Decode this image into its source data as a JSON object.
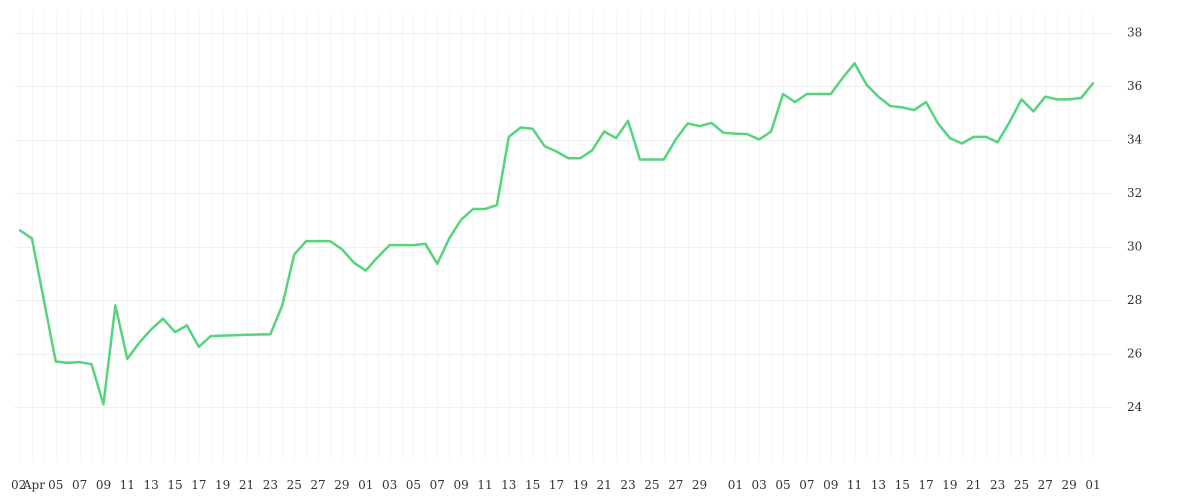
{
  "chart_data": {
    "type": "line",
    "title": "",
    "xlabel": "",
    "ylabel": "",
    "ylim": [
      22,
      39
    ],
    "grid": true,
    "y_axis_side": "right",
    "y_ticks": [
      24,
      26,
      28,
      30,
      32,
      34,
      36,
      38
    ],
    "x_tick_labels": [
      {
        "i": 0,
        "label": "02"
      },
      {
        "i": 1,
        "label": "Apr"
      },
      {
        "i": 3,
        "label": "05"
      },
      {
        "i": 5,
        "label": "07"
      },
      {
        "i": 7,
        "label": "09"
      },
      {
        "i": 9,
        "label": "11"
      },
      {
        "i": 11,
        "label": "13"
      },
      {
        "i": 13,
        "label": "15"
      },
      {
        "i": 15,
        "label": "17"
      },
      {
        "i": 17,
        "label": "19"
      },
      {
        "i": 19,
        "label": "21"
      },
      {
        "i": 21,
        "label": "23"
      },
      {
        "i": 23,
        "label": "25"
      },
      {
        "i": 25,
        "label": "27"
      },
      {
        "i": 27,
        "label": "29"
      },
      {
        "i": 29,
        "label": "01"
      },
      {
        "i": 31,
        "label": "03"
      },
      {
        "i": 33,
        "label": "05"
      },
      {
        "i": 35,
        "label": "07"
      },
      {
        "i": 37,
        "label": "09"
      },
      {
        "i": 39,
        "label": "11"
      },
      {
        "i": 41,
        "label": "13"
      },
      {
        "i": 43,
        "label": "15"
      },
      {
        "i": 45,
        "label": "17"
      },
      {
        "i": 47,
        "label": "19"
      },
      {
        "i": 49,
        "label": "21"
      },
      {
        "i": 51,
        "label": "23"
      },
      {
        "i": 53,
        "label": "25"
      },
      {
        "i": 55,
        "label": "27"
      },
      {
        "i": 57,
        "label": "29"
      },
      {
        "i": 60,
        "label": "01"
      },
      {
        "i": 62,
        "label": "03"
      },
      {
        "i": 64,
        "label": "05"
      },
      {
        "i": 66,
        "label": "07"
      },
      {
        "i": 68,
        "label": "09"
      },
      {
        "i": 70,
        "label": "11"
      },
      {
        "i": 72,
        "label": "13"
      },
      {
        "i": 74,
        "label": "15"
      },
      {
        "i": 76,
        "label": "17"
      },
      {
        "i": 78,
        "label": "19"
      },
      {
        "i": 80,
        "label": "21"
      },
      {
        "i": 82,
        "label": "23"
      },
      {
        "i": 84,
        "label": "25"
      },
      {
        "i": 86,
        "label": "27"
      },
      {
        "i": 88,
        "label": "29"
      },
      {
        "i": 90,
        "label": "01"
      }
    ],
    "series": [
      {
        "color": "#55d47d",
        "values": [
          30.6,
          30.3,
          28.0,
          25.7,
          25.65,
          25.68,
          25.6,
          24.1,
          27.8,
          25.8,
          26.4,
          26.9,
          27.3,
          26.8,
          27.05,
          26.25,
          26.65,
          26.67,
          26.68,
          26.7,
          26.71,
          26.72,
          27.8,
          29.7,
          30.2,
          30.2,
          30.2,
          29.9,
          29.4,
          29.1,
          29.6,
          30.05,
          30.05,
          30.05,
          30.1,
          29.35,
          30.3,
          31.0,
          31.4,
          31.4,
          31.55,
          34.1,
          34.45,
          34.4,
          33.75,
          33.55,
          33.3,
          33.3,
          33.6,
          34.3,
          34.05,
          34.7,
          33.25,
          33.25,
          33.25,
          34.0,
          34.6,
          34.5,
          34.62,
          34.25,
          34.22,
          34.2,
          34.0,
          34.3,
          35.7,
          35.4,
          35.7,
          35.7,
          35.7,
          36.3,
          36.85,
          36.05,
          35.6,
          35.25,
          35.2,
          35.1,
          35.4,
          34.6,
          34.05,
          33.85,
          34.1,
          34.1,
          33.9,
          34.65,
          35.5,
          35.05,
          35.6,
          35.5,
          35.5,
          35.55,
          36.1
        ]
      }
    ]
  }
}
